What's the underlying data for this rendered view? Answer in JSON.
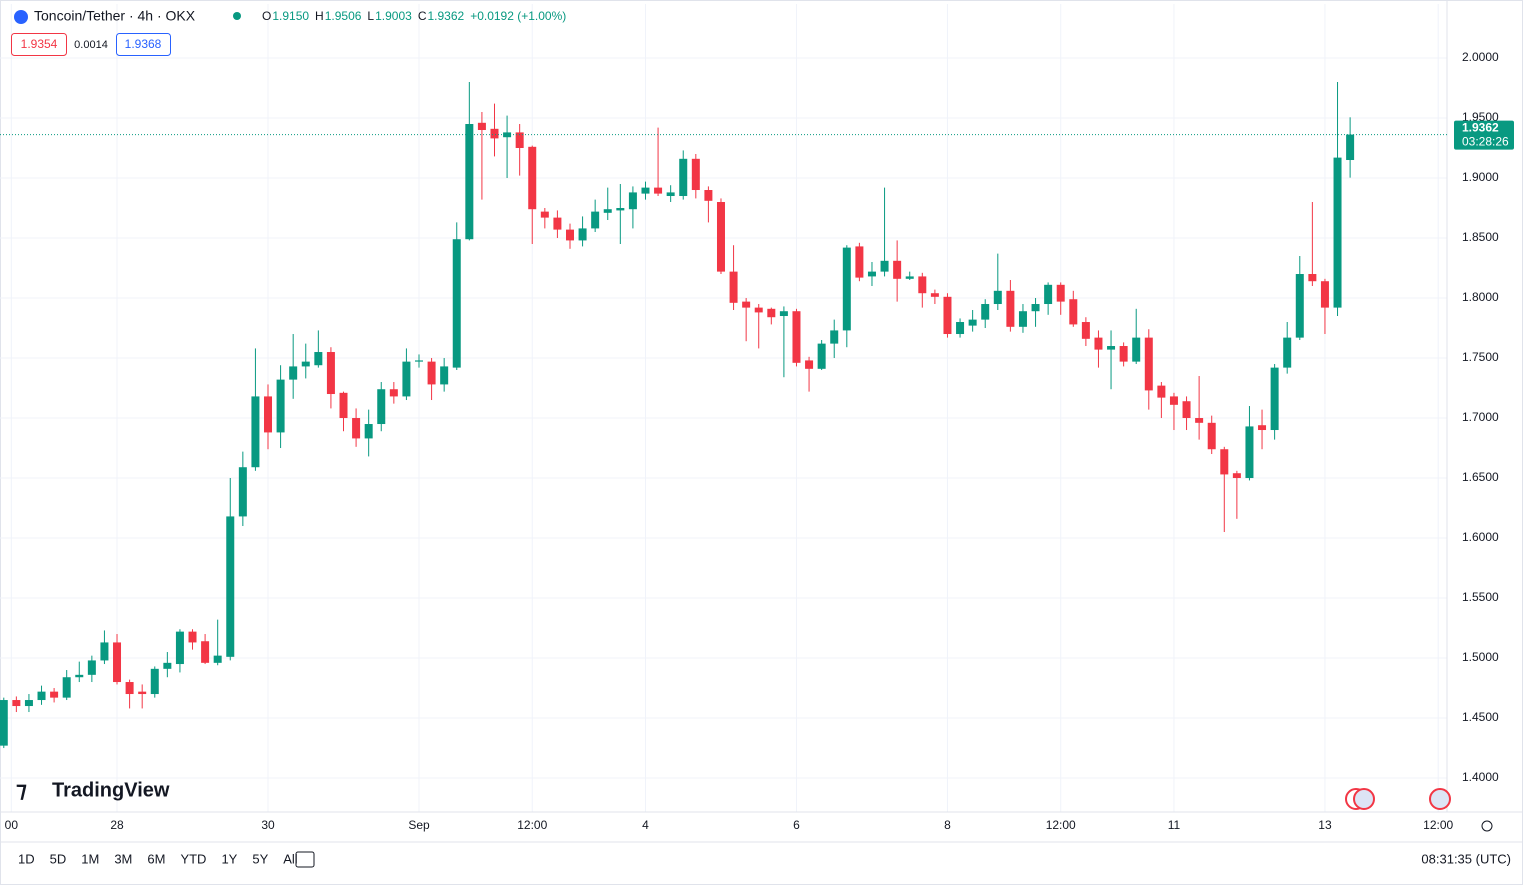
{
  "header": {
    "symbol": "Toncoin/Tether · 4h · OKX",
    "ohlc": [
      {
        "label": "O",
        "value": "1.9150"
      },
      {
        "label": "H",
        "value": "1.9506"
      },
      {
        "label": "L",
        "value": "1.9003"
      },
      {
        "label": "C",
        "value": "1.9362"
      }
    ],
    "change": "+0.0192 (+1.00%)",
    "bid": "1.9354",
    "spread": "0.0014",
    "ask": "1.9368"
  },
  "chart_data": {
    "type": "candlestick",
    "up_color": "#089981",
    "down_color": "#f23645",
    "grid": true,
    "xlim": [
      -0.3,
      114.7
    ],
    "xticks": [
      {
        "value": 0.6,
        "label": "00"
      },
      {
        "value": 9,
        "label": "28"
      },
      {
        "value": 21,
        "label": "30"
      },
      {
        "value": 33,
        "label": "Sep"
      },
      {
        "value": 42,
        "label": "12:00"
      },
      {
        "value": 51,
        "label": "4"
      },
      {
        "value": 63,
        "label": "6"
      },
      {
        "value": 75,
        "label": "8"
      },
      {
        "value": 84,
        "label": "12:00"
      },
      {
        "value": 93,
        "label": "11"
      },
      {
        "value": 105,
        "label": "13"
      },
      {
        "value": 114,
        "label": "12:00"
      }
    ],
    "ylim": [
      1.3717,
      2.045
    ],
    "yticks": [
      {
        "value": 1.4,
        "label": "1.4000"
      },
      {
        "value": 1.45,
        "label": "1.4500"
      },
      {
        "value": 1.5,
        "label": "1.5000"
      },
      {
        "value": 1.55,
        "label": "1.5500"
      },
      {
        "value": 1.6,
        "label": "1.6000"
      },
      {
        "value": 1.65,
        "label": "1.6500"
      },
      {
        "value": 1.7,
        "label": "1.7000"
      },
      {
        "value": 1.75,
        "label": "1.7500"
      },
      {
        "value": 1.8,
        "label": "1.8000"
      },
      {
        "value": 1.85,
        "label": "1.8500"
      },
      {
        "value": 1.9,
        "label": "1.9000"
      },
      {
        "value": 1.95,
        "label": "1.9500"
      },
      {
        "value": 2.0,
        "label": "2.0000"
      }
    ],
    "open": [
      1.427,
      1.465,
      1.46,
      1.465,
      1.472,
      1.467,
      1.484,
      1.486,
      1.498,
      1.513,
      1.48,
      1.472,
      1.47,
      1.491,
      1.495,
      1.522,
      1.514,
      1.496,
      1.501,
      1.618,
      1.659,
      1.718,
      1.688,
      1.732,
      1.743,
      1.744,
      1.755,
      1.721,
      1.7,
      1.683,
      1.695,
      1.724,
      1.718,
      1.747,
      1.747,
      1.728,
      1.742,
      1.849,
      1.946,
      1.941,
      1.934,
      1.938,
      1.926,
      1.872,
      1.867,
      1.857,
      1.848,
      1.858,
      1.871,
      1.873,
      1.874,
      1.887,
      1.892,
      1.885,
      1.885,
      1.916,
      1.89,
      1.88,
      1.822,
      1.797,
      1.792,
      1.791,
      1.785,
      1.789,
      1.748,
      1.741,
      1.762,
      1.773,
      1.843,
      1.818,
      1.822,
      1.831,
      1.816,
      1.818,
      1.804,
      1.801,
      1.77,
      1.777,
      1.782,
      1.795,
      1.806,
      1.776,
      1.789,
      1.795,
      1.811,
      1.799,
      1.78,
      1.767,
      1.757,
      1.76,
      1.747,
      1.767,
      1.727,
      1.718,
      1.714,
      1.7,
      1.696,
      1.674,
      1.654,
      1.65,
      1.694,
      1.69,
      1.742,
      1.767,
      1.82,
      1.814,
      1.792,
      1.915
    ],
    "high": [
      1.467,
      1.468,
      1.47,
      1.477,
      1.475,
      1.49,
      1.497,
      1.502,
      1.523,
      1.52,
      1.482,
      1.478,
      1.493,
      1.505,
      1.524,
      1.524,
      1.52,
      1.532,
      1.65,
      1.672,
      1.758,
      1.728,
      1.744,
      1.77,
      1.762,
      1.773,
      1.759,
      1.722,
      1.708,
      1.707,
      1.73,
      1.73,
      1.758,
      1.753,
      1.75,
      1.75,
      1.863,
      1.98,
      1.955,
      1.962,
      1.952,
      1.945,
      1.927,
      1.875,
      1.873,
      1.862,
      1.868,
      1.882,
      1.892,
      1.895,
      1.893,
      1.897,
      1.942,
      1.894,
      1.923,
      1.92,
      1.893,
      1.883,
      1.844,
      1.8,
      1.795,
      1.792,
      1.793,
      1.791,
      1.751,
      1.765,
      1.782,
      1.844,
      1.846,
      1.83,
      1.892,
      1.848,
      1.822,
      1.821,
      1.807,
      1.804,
      1.783,
      1.79,
      1.799,
      1.837,
      1.815,
      1.795,
      1.8,
      1.813,
      1.813,
      1.806,
      1.784,
      1.773,
      1.773,
      1.763,
      1.791,
      1.774,
      1.73,
      1.721,
      1.718,
      1.735,
      1.702,
      1.676,
      1.656,
      1.71,
      1.707,
      1.745,
      1.78,
      1.835,
      1.88,
      1.816,
      1.98,
      1.9506
    ],
    "low": [
      1.425,
      1.455,
      1.455,
      1.461,
      1.463,
      1.465,
      1.48,
      1.48,
      1.495,
      1.478,
      1.458,
      1.458,
      1.467,
      1.484,
      1.488,
      1.507,
      1.495,
      1.494,
      1.498,
      1.61,
      1.656,
      1.674,
      1.675,
      1.716,
      1.733,
      1.742,
      1.708,
      1.689,
      1.676,
      1.668,
      1.689,
      1.712,
      1.715,
      1.742,
      1.715,
      1.722,
      1.74,
      1.848,
      1.882,
      1.918,
      1.9,
      1.902,
      1.845,
      1.858,
      1.85,
      1.841,
      1.843,
      1.855,
      1.865,
      1.845,
      1.858,
      1.882,
      1.885,
      1.88,
      1.882,
      1.883,
      1.863,
      1.82,
      1.79,
      1.764,
      1.758,
      1.778,
      1.734,
      1.743,
      1.722,
      1.74,
      1.75,
      1.759,
      1.814,
      1.81,
      1.818,
      1.797,
      1.815,
      1.792,
      1.795,
      1.767,
      1.767,
      1.772,
      1.775,
      1.79,
      1.772,
      1.771,
      1.776,
      1.786,
      1.786,
      1.776,
      1.76,
      1.742,
      1.724,
      1.743,
      1.745,
      1.707,
      1.7,
      1.69,
      1.69,
      1.682,
      1.67,
      1.605,
      1.616,
      1.648,
      1.674,
      1.682,
      1.737,
      1.765,
      1.81,
      1.77,
      1.785,
      1.9003
    ],
    "close": [
      1.465,
      1.46,
      1.465,
      1.472,
      1.467,
      1.484,
      1.486,
      1.498,
      1.513,
      1.48,
      1.47,
      1.47,
      1.491,
      1.496,
      1.522,
      1.513,
      1.496,
      1.502,
      1.618,
      1.659,
      1.718,
      1.688,
      1.732,
      1.743,
      1.747,
      1.755,
      1.72,
      1.7,
      1.683,
      1.695,
      1.724,
      1.718,
      1.747,
      1.748,
      1.728,
      1.743,
      1.849,
      1.945,
      1.94,
      1.933,
      1.938,
      1.925,
      1.874,
      1.867,
      1.857,
      1.848,
      1.858,
      1.872,
      1.874,
      1.875,
      1.888,
      1.892,
      1.887,
      1.888,
      1.916,
      1.89,
      1.881,
      1.822,
      1.796,
      1.792,
      1.788,
      1.784,
      1.789,
      1.746,
      1.741,
      1.762,
      1.773,
      1.842,
      1.817,
      1.822,
      1.831,
      1.816,
      1.818,
      1.804,
      1.801,
      1.77,
      1.78,
      1.782,
      1.795,
      1.806,
      1.776,
      1.789,
      1.795,
      1.811,
      1.797,
      1.778,
      1.766,
      1.757,
      1.76,
      1.747,
      1.767,
      1.723,
      1.717,
      1.711,
      1.7,
      1.696,
      1.674,
      1.653,
      1.65,
      1.693,
      1.69,
      1.742,
      1.767,
      1.82,
      1.814,
      1.792,
      1.917,
      1.9362
    ],
    "countdown": "03:28:26",
    "watermark": "TradingView",
    "ranges": [
      "1D",
      "5D",
      "1M",
      "3M",
      "6M",
      "YTD",
      "1Y",
      "5Y",
      "All"
    ],
    "clock": "08:31:35 (UTC)"
  }
}
